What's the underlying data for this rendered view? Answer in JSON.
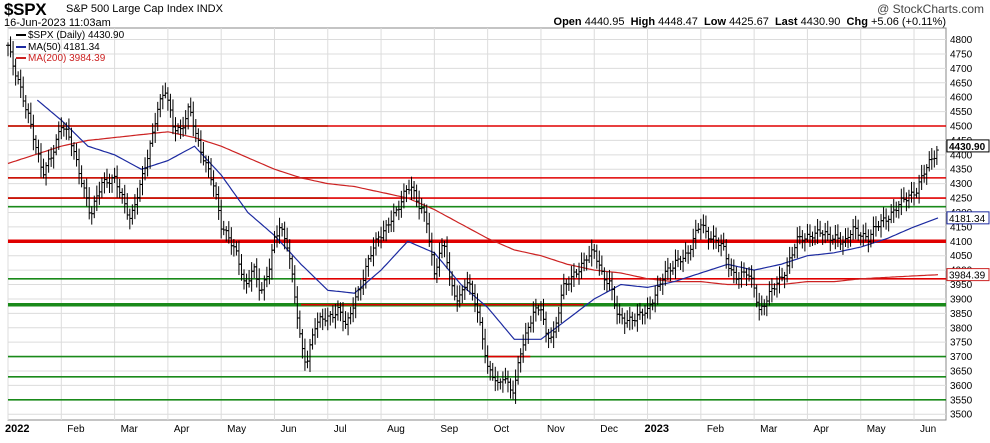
{
  "header": {
    "symbol": "$SPX",
    "description": "S&P 500 Large Cap Index  INDX",
    "timestamp": "16-Jun-2023 11:03am",
    "watermark": "@ StockCharts.com",
    "ohlc": {
      "open_label": "Open",
      "open": "4440.95",
      "high_label": "High",
      "high": "4448.47",
      "low_label": "Low",
      "low": "4425.67",
      "last_label": "Last",
      "last": "4430.90",
      "chg_label": "Chg",
      "chg": "+5.06 (+0.11%)"
    }
  },
  "legend": {
    "price": "$SPX (Daily) 4430.90",
    "ma50": "MA(50) 4181.34",
    "ma200": "MA(200) 3984.39"
  },
  "colors": {
    "price_bars": "#000000",
    "ma50": "#1c2aa0",
    "ma200": "#cc2222",
    "red_level": "#e00000",
    "green_level": "#1a8a1a",
    "grid": "#dcdcdc",
    "last_box": "#ffffff"
  },
  "chart_data": {
    "type": "line",
    "title": "$SPX S&P 500 Large Cap Index",
    "ylim": [
      3480,
      4840
    ],
    "y_ticks": [
      3500,
      3550,
      3600,
      3650,
      3700,
      3750,
      3800,
      3850,
      3900,
      3950,
      4000,
      4050,
      4100,
      4150,
      4200,
      4250,
      4300,
      4350,
      4400,
      4450,
      4500,
      4550,
      4600,
      4650,
      4700,
      4750,
      4800
    ],
    "x_labels": [
      "2022",
      "Feb",
      "Mar",
      "Apr",
      "May",
      "Jun",
      "Jul",
      "Aug",
      "Sep",
      "Oct",
      "Nov",
      "Dec",
      "2023",
      "Feb",
      "Mar",
      "Apr",
      "May",
      "Jun"
    ],
    "x_label_months": [
      0,
      1,
      2,
      3,
      4,
      5,
      6,
      7,
      8,
      9,
      10,
      11,
      12,
      13,
      14,
      15,
      16,
      17
    ],
    "x_range_months": [
      0,
      17.6
    ],
    "price_anchors": [
      [
        0.0,
        4780
      ],
      [
        0.1,
        4700
      ],
      [
        0.25,
        4620
      ],
      [
        0.4,
        4530
      ],
      [
        0.55,
        4400
      ],
      [
        0.65,
        4330
      ],
      [
        0.85,
        4420
      ],
      [
        1.0,
        4500
      ],
      [
        1.2,
        4440
      ],
      [
        1.4,
        4300
      ],
      [
        1.55,
        4180
      ],
      [
        1.75,
        4310
      ],
      [
        2.0,
        4310
      ],
      [
        2.15,
        4250
      ],
      [
        2.3,
        4180
      ],
      [
        2.5,
        4300
      ],
      [
        2.65,
        4420
      ],
      [
        2.8,
        4560
      ],
      [
        2.95,
        4620
      ],
      [
        3.1,
        4500
      ],
      [
        3.25,
        4490
      ],
      [
        3.4,
        4560
      ],
      [
        3.55,
        4450
      ],
      [
        3.7,
        4380
      ],
      [
        3.85,
        4300
      ],
      [
        4.0,
        4150
      ],
      [
        4.15,
        4120
      ],
      [
        4.3,
        4050
      ],
      [
        4.45,
        3930
      ],
      [
        4.6,
        4020
      ],
      [
        4.75,
        3920
      ],
      [
        4.9,
        4000
      ],
      [
        5.0,
        4110
      ],
      [
        5.1,
        4160
      ],
      [
        5.25,
        4080
      ],
      [
        5.4,
        3880
      ],
      [
        5.5,
        3740
      ],
      [
        5.6,
        3680
      ],
      [
        5.75,
        3800
      ],
      [
        5.9,
        3830
      ],
      [
        6.0,
        3840
      ],
      [
        6.2,
        3860
      ],
      [
        6.35,
        3800
      ],
      [
        6.5,
        3900
      ],
      [
        6.65,
        3960
      ],
      [
        6.8,
        4050
      ],
      [
        6.95,
        4120
      ],
      [
        7.1,
        4150
      ],
      [
        7.3,
        4200
      ],
      [
        7.45,
        4280
      ],
      [
        7.55,
        4300
      ],
      [
        7.7,
        4220
      ],
      [
        7.85,
        4180
      ],
      [
        8.0,
        3990
      ],
      [
        8.1,
        4060
      ],
      [
        8.2,
        4080
      ],
      [
        8.3,
        3950
      ],
      [
        8.45,
        3900
      ],
      [
        8.6,
        3960
      ],
      [
        8.75,
        3900
      ],
      [
        8.9,
        3780
      ],
      [
        9.0,
        3660
      ],
      [
        9.1,
        3630
      ],
      [
        9.2,
        3590
      ],
      [
        9.3,
        3640
      ],
      [
        9.4,
        3600
      ],
      [
        9.5,
        3580
      ],
      [
        9.6,
        3700
      ],
      [
        9.7,
        3760
      ],
      [
        9.85,
        3860
      ],
      [
        10.0,
        3870
      ],
      [
        10.1,
        3760
      ],
      [
        10.25,
        3780
      ],
      [
        10.4,
        3940
      ],
      [
        10.55,
        3960
      ],
      [
        10.7,
        4000
      ],
      [
        10.85,
        4050
      ],
      [
        11.0,
        4060
      ],
      [
        11.15,
        3980
      ],
      [
        11.3,
        3960
      ],
      [
        11.45,
        3830
      ],
      [
        11.6,
        3820
      ],
      [
        11.75,
        3840
      ],
      [
        11.9,
        3850
      ],
      [
        12.0,
        3850
      ],
      [
        12.15,
        3920
      ],
      [
        12.3,
        3990
      ],
      [
        12.45,
        4000
      ],
      [
        12.6,
        4040
      ],
      [
        12.75,
        4060
      ],
      [
        12.9,
        4120
      ],
      [
        13.0,
        4160
      ],
      [
        13.1,
        4130
      ],
      [
        13.25,
        4110
      ],
      [
        13.4,
        4080
      ],
      [
        13.55,
        4000
      ],
      [
        13.7,
        3980
      ],
      [
        13.85,
        3990
      ],
      [
        14.0,
        3940
      ],
      [
        14.1,
        3860
      ],
      [
        14.2,
        3890
      ],
      [
        14.35,
        3930
      ],
      [
        14.5,
        3970
      ],
      [
        14.65,
        4030
      ],
      [
        14.8,
        4100
      ],
      [
        14.95,
        4110
      ],
      [
        15.1,
        4130
      ],
      [
        15.25,
        4130
      ],
      [
        15.4,
        4110
      ],
      [
        15.55,
        4120
      ],
      [
        15.7,
        4090
      ],
      [
        15.85,
        4140
      ],
      [
        16.0,
        4130
      ],
      [
        16.15,
        4110
      ],
      [
        16.3,
        4150
      ],
      [
        16.45,
        4180
      ],
      [
        16.6,
        4200
      ],
      [
        16.75,
        4230
      ],
      [
        16.9,
        4260
      ],
      [
        17.05,
        4280
      ],
      [
        17.2,
        4340
      ],
      [
        17.35,
        4390
      ],
      [
        17.45,
        4430
      ]
    ],
    "ma50_anchors": [
      [
        0.55,
        4590
      ],
      [
        1.0,
        4520
      ],
      [
        1.5,
        4430
      ],
      [
        2.0,
        4400
      ],
      [
        2.5,
        4350
      ],
      [
        3.0,
        4380
      ],
      [
        3.5,
        4430
      ],
      [
        4.0,
        4330
      ],
      [
        4.5,
        4200
      ],
      [
        5.0,
        4120
      ],
      [
        5.5,
        4020
      ],
      [
        6.0,
        3930
      ],
      [
        6.5,
        3920
      ],
      [
        7.0,
        4000
      ],
      [
        7.5,
        4100
      ],
      [
        8.0,
        4060
      ],
      [
        8.5,
        3950
      ],
      [
        9.0,
        3870
      ],
      [
        9.5,
        3760
      ],
      [
        10.0,
        3760
      ],
      [
        10.5,
        3830
      ],
      [
        11.0,
        3900
      ],
      [
        11.5,
        3950
      ],
      [
        12.0,
        3940
      ],
      [
        12.5,
        3960
      ],
      [
        13.0,
        3990
      ],
      [
        13.5,
        4020
      ],
      [
        14.0,
        4000
      ],
      [
        14.5,
        4020
      ],
      [
        15.0,
        4050
      ],
      [
        15.5,
        4060
      ],
      [
        16.0,
        4080
      ],
      [
        16.5,
        4110
      ],
      [
        17.0,
        4150
      ],
      [
        17.45,
        4181
      ]
    ],
    "ma200_anchors": [
      [
        0.0,
        4370
      ],
      [
        0.5,
        4400
      ],
      [
        1.0,
        4430
      ],
      [
        1.5,
        4450
      ],
      [
        2.0,
        4460
      ],
      [
        2.5,
        4470
      ],
      [
        3.0,
        4480
      ],
      [
        3.5,
        4460
      ],
      [
        4.0,
        4430
      ],
      [
        4.5,
        4390
      ],
      [
        5.0,
        4350
      ],
      [
        5.5,
        4320
      ],
      [
        6.0,
        4300
      ],
      [
        6.5,
        4290
      ],
      [
        7.0,
        4270
      ],
      [
        7.5,
        4250
      ],
      [
        8.0,
        4210
      ],
      [
        8.5,
        4160
      ],
      [
        9.0,
        4110
      ],
      [
        9.5,
        4070
      ],
      [
        10.0,
        4050
      ],
      [
        10.5,
        4020
      ],
      [
        11.0,
        4000
      ],
      [
        11.5,
        3990
      ],
      [
        12.0,
        3970
      ],
      [
        12.5,
        3960
      ],
      [
        13.0,
        3960
      ],
      [
        13.5,
        3950
      ],
      [
        14.0,
        3950
      ],
      [
        14.5,
        3950
      ],
      [
        15.0,
        3960
      ],
      [
        15.5,
        3960
      ],
      [
        16.0,
        3970
      ],
      [
        16.5,
        3975
      ],
      [
        17.0,
        3980
      ],
      [
        17.45,
        3984
      ]
    ],
    "red_levels": [
      {
        "value": 4500,
        "x_start": 0,
        "x_end": 17.6,
        "weight": 1.6
      },
      {
        "value": 4320,
        "x_start": 0,
        "x_end": 17.6,
        "weight": 1.6
      },
      {
        "value": 4250,
        "x_start": 0,
        "x_end": 17.6,
        "weight": 1.6
      },
      {
        "value": 4100,
        "x_start": 0,
        "x_end": 17.6,
        "weight": 3.5
      },
      {
        "value": 3970,
        "x_start": 5.5,
        "x_end": 17.6,
        "weight": 1.6
      },
      {
        "value": 3880,
        "x_start": 5.5,
        "x_end": 10.8,
        "weight": 1.6
      },
      {
        "value": 3700,
        "x_start": 9.0,
        "x_end": 9.8,
        "weight": 1.6
      }
    ],
    "green_levels": [
      {
        "value": 4500,
        "x_start": 0,
        "x_end": 6.0,
        "weight": 1.6
      },
      {
        "value": 4320,
        "x_start": 0,
        "x_end": 6.0,
        "weight": 1.6
      },
      {
        "value": 4250,
        "x_start": 0,
        "x_end": 6.0,
        "weight": 1.6
      },
      {
        "value": 4220,
        "x_start": 0,
        "x_end": 17.6,
        "weight": 1.6
      },
      {
        "value": 4100,
        "x_start": 0,
        "x_end": 6.0,
        "weight": 3.5
      },
      {
        "value": 3970,
        "x_start": 0,
        "x_end": 5.5,
        "weight": 1.6
      },
      {
        "value": 3880,
        "x_start": 0,
        "x_end": 17.6,
        "weight": 3.5
      },
      {
        "value": 3700,
        "x_start": 0,
        "x_end": 17.6,
        "weight": 1.6
      },
      {
        "value": 3630,
        "x_start": 0,
        "x_end": 17.6,
        "weight": 1.6
      },
      {
        "value": 3550,
        "x_start": 0,
        "x_end": 17.6,
        "weight": 1.6
      }
    ],
    "axis_tags": [
      {
        "value": 4430.9,
        "text": "4430.90",
        "kind": "last"
      },
      {
        "value": 4181.34,
        "text": "4181.34",
        "kind": "ma50"
      },
      {
        "value": 3984.39,
        "text": "3984.39",
        "kind": "ma200"
      }
    ]
  }
}
